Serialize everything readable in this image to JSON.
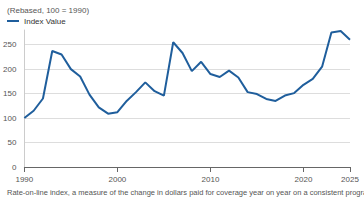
{
  "chart_data": {
    "type": "line",
    "subtitle": "(Rebased, 100 = 1990)",
    "caption": "Rate-on-line index, a measure of the change in dollars paid for coverage year on year on a consistent program",
    "x": [
      1990,
      1991,
      1992,
      1993,
      1994,
      1995,
      1996,
      1997,
      1998,
      1999,
      2000,
      2001,
      2002,
      2003,
      2004,
      2005,
      2006,
      2007,
      2008,
      2009,
      2010,
      2011,
      2012,
      2013,
      2014,
      2015,
      2016,
      2017,
      2018,
      2019,
      2020,
      2021,
      2022,
      2023,
      2024,
      2025
    ],
    "series": [
      {
        "name": "Index Value",
        "color": "#1f5e9c",
        "values": [
          100,
          115,
          140,
          237,
          230,
          200,
          185,
          148,
          122,
          109,
          112,
          135,
          153,
          173,
          155,
          146,
          255,
          233,
          196,
          215,
          190,
          184,
          197,
          183,
          153,
          149,
          139,
          135,
          146,
          151,
          168,
          180,
          205,
          275,
          278,
          260
        ]
      }
    ],
    "xlim": [
      1990,
      2025
    ],
    "xticks": [
      1990,
      2000,
      2010,
      2020,
      2025
    ],
    "ylim": [
      0,
      280
    ],
    "yticks": [
      0,
      50,
      100,
      150,
      200,
      250
    ],
    "grid": true,
    "legend": "top-left"
  }
}
